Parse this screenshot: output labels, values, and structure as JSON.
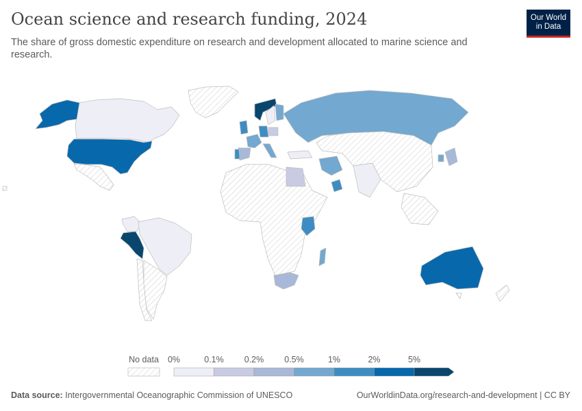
{
  "header": {
    "title": "Ocean science and research funding, 2024",
    "subtitle": "The share of gross domestic expenditure on research and development allocated to marine science and research."
  },
  "logo": {
    "line1": "Our World",
    "line2": "in Data"
  },
  "legend": {
    "no_data_label": "No data",
    "bins": [
      {
        "label": "0%",
        "color": "#eeeef6"
      },
      {
        "label": "0.1%",
        "color": "#c9cbe3"
      },
      {
        "label": "0.2%",
        "color": "#a8b8d8"
      },
      {
        "label": "0.5%",
        "color": "#73a8d0"
      },
      {
        "label": "1%",
        "color": "#3d8dc2"
      },
      {
        "label": "2%",
        "color": "#0868ac"
      },
      {
        "label": "5%",
        "color": "#08466e"
      }
    ]
  },
  "map_data": {
    "bin_colors": [
      "#eeeef6",
      "#c9cbe3",
      "#a8b8d8",
      "#73a8d0",
      "#3d8dc2",
      "#0868ac",
      "#08466e"
    ],
    "no_data_fill": "hatched light gray",
    "regions": [
      {
        "name": "Canada",
        "bin": 0
      },
      {
        "name": "United States",
        "bin": 5
      },
      {
        "name": "Alaska (United States)",
        "bin": 5
      },
      {
        "name": "Mexico",
        "bin": -1
      },
      {
        "name": "Greenland",
        "bin": -1
      },
      {
        "name": "Colombia",
        "bin": 0
      },
      {
        "name": "Peru",
        "bin": 6
      },
      {
        "name": "Brazil",
        "bin": 0
      },
      {
        "name": "Argentina",
        "bin": -1
      },
      {
        "name": "Chile",
        "bin": -1
      },
      {
        "name": "Norway",
        "bin": 6
      },
      {
        "name": "Sweden",
        "bin": 0
      },
      {
        "name": "Finland",
        "bin": 3
      },
      {
        "name": "United Kingdom",
        "bin": 4
      },
      {
        "name": "Germany",
        "bin": 4
      },
      {
        "name": "France",
        "bin": 3
      },
      {
        "name": "Spain",
        "bin": 2
      },
      {
        "name": "Portugal",
        "bin": 4
      },
      {
        "name": "Italy",
        "bin": 3
      },
      {
        "name": "Poland",
        "bin": 1
      },
      {
        "name": "Turkey",
        "bin": 0
      },
      {
        "name": "Russia",
        "bin": 3
      },
      {
        "name": "Iran",
        "bin": 3
      },
      {
        "name": "Egypt",
        "bin": 1
      },
      {
        "name": "Oman",
        "bin": 4
      },
      {
        "name": "Kenya",
        "bin": 4
      },
      {
        "name": "Madagascar",
        "bin": 3
      },
      {
        "name": "South Africa",
        "bin": 2
      },
      {
        "name": "India",
        "bin": 0
      },
      {
        "name": "China",
        "bin": -1
      },
      {
        "name": "Japan",
        "bin": 2
      },
      {
        "name": "South Korea",
        "bin": 3
      },
      {
        "name": "Australia",
        "bin": 5
      }
    ]
  },
  "footer": {
    "source_label": "Data source:",
    "source_text": "Intergovernmental Oceanographic Commission of UNESCO",
    "url": "OurWorldinData.org/research-and-development | CC BY"
  }
}
